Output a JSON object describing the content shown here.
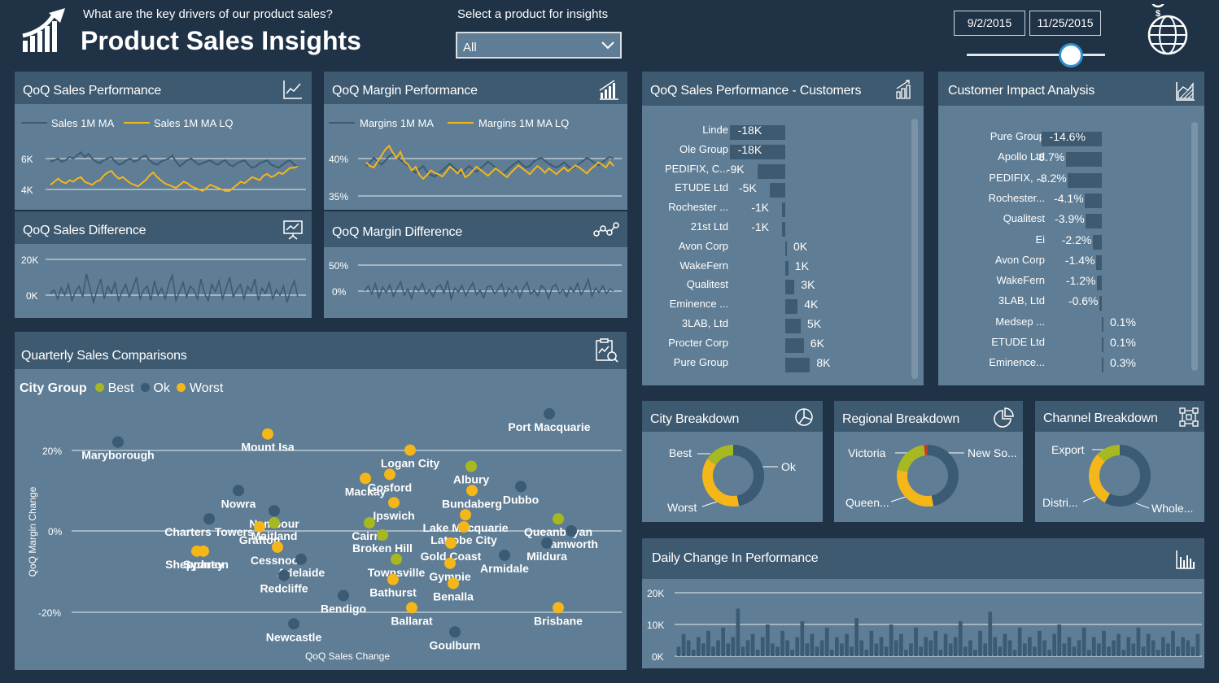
{
  "header": {
    "question": "What are the key drivers of our product sales?",
    "title": "Product Sales Insights",
    "selector_label": "Select a product for insights",
    "selector_value": "All",
    "date_start": "9/2/2015",
    "date_end": "11/25/2015",
    "date_slider_position": 0.75
  },
  "colors": {
    "bg": "#1f3246",
    "panel": "#5f7d94",
    "header": "#3e5a70",
    "navy": "#3b5a74",
    "yellow": "#f5b619",
    "green": "#a8b820"
  },
  "panels": {
    "qoq_sales": {
      "title": "QoQ Sales Performance",
      "legend": [
        "Sales 1M MA",
        "Sales 1M MA LQ"
      ],
      "ticks": [
        "6K",
        "4K"
      ]
    },
    "qoq_margin": {
      "title": "QoQ Margin Performance",
      "legend": [
        "Margins 1M MA",
        "Margins 1M MA LQ"
      ],
      "ticks": [
        "40%",
        "35%"
      ]
    },
    "sales_diff": {
      "title": "QoQ Sales Difference",
      "ticks": [
        "20K",
        "0K"
      ]
    },
    "margin_diff": {
      "title": "QoQ Margin Difference",
      "ticks": [
        "50%",
        "0%"
      ]
    },
    "customers": {
      "title": "QoQ Sales Performance - Customers"
    },
    "impact": {
      "title": "Customer Impact Analysis"
    },
    "quarterly": {
      "title": "Quarterly Sales Comparisons",
      "legend_title": "City Group",
      "legend": [
        "Best",
        "Ok",
        "Worst"
      ],
      "xlabel": "QoQ Sales Change",
      "ylabel": "QoQ Margin Change",
      "ticks": [
        "20%",
        "0%",
        "-20%"
      ]
    },
    "city": {
      "title": "City Breakdown",
      "labels": [
        "Best",
        "Ok",
        "Worst"
      ]
    },
    "regional": {
      "title": "Regional Breakdown",
      "labels": [
        "Victoria",
        "New So...",
        "Queen..."
      ]
    },
    "channel": {
      "title": "Channel Breakdown",
      "labels": [
        "Export",
        "Distri...",
        "Whole..."
      ]
    },
    "daily": {
      "title": "Daily Change In Performance",
      "ticks": [
        "20K",
        "10K",
        "0K"
      ]
    }
  },
  "customers": [
    {
      "name": "Linde",
      "label": "-18K",
      "value": -18
    },
    {
      "name": "Ole Group",
      "label": "-18K",
      "value": -18
    },
    {
      "name": "PEDIFIX, C...",
      "label": "-9K",
      "value": -9
    },
    {
      "name": "ETUDE Ltd",
      "label": "-5K",
      "value": -5
    },
    {
      "name": "Rochester ...",
      "label": "-1K",
      "value": -1
    },
    {
      "name": "21st Ltd",
      "label": "-1K",
      "value": -1
    },
    {
      "name": "Avon Corp",
      "label": "0K",
      "value": 0
    },
    {
      "name": "WakeFern",
      "label": "1K",
      "value": 1
    },
    {
      "name": "Qualitest",
      "label": "3K",
      "value": 3
    },
    {
      "name": "Eminence ...",
      "label": "4K",
      "value": 4
    },
    {
      "name": "3LAB, Ltd",
      "label": "5K",
      "value": 5
    },
    {
      "name": "Procter Corp",
      "label": "6K",
      "value": 6
    },
    {
      "name": "Pure Group",
      "label": "8K",
      "value": 8
    }
  ],
  "impact": [
    {
      "name": "Pure Group",
      "label": "-14.6%",
      "value": -14.6
    },
    {
      "name": "Apollo Ltd",
      "label": "-8.7%",
      "value": -8.7
    },
    {
      "name": "PEDIFIX, ...",
      "label": "-8.2%",
      "value": -8.2
    },
    {
      "name": "Rochester...",
      "label": "-4.1%",
      "value": -4.1
    },
    {
      "name": "Qualitest",
      "label": "-3.9%",
      "value": -3.9
    },
    {
      "name": "Ei",
      "label": "-2.2%",
      "value": -2.2
    },
    {
      "name": "Avon Corp",
      "label": "-1.4%",
      "value": -1.4
    },
    {
      "name": "WakeFern",
      "label": "-1.2%",
      "value": -1.2
    },
    {
      "name": "3LAB, Ltd",
      "label": "-0.6%",
      "value": -0.6
    },
    {
      "name": "Medsep ...",
      "label": "0.1%",
      "value": 0.1
    },
    {
      "name": "ETUDE Ltd",
      "label": "0.1%",
      "value": 0.1
    },
    {
      "name": "Eminence...",
      "label": "0.3%",
      "value": 0.3
    }
  ],
  "chart_data": [
    {
      "type": "line",
      "title": "QoQ Sales Performance",
      "series": [
        {
          "name": "Sales 1M MA",
          "values": [
            5.8,
            5.9,
            6.0,
            5.8,
            5.9,
            6.1,
            6.0,
            6.2,
            6.4,
            6.1,
            6.3,
            6.0,
            5.8,
            5.7,
            5.9,
            6.0,
            6.1,
            5.8,
            5.6,
            5.7,
            5.9,
            6.0,
            5.8,
            5.9,
            6.1,
            6.2,
            5.9,
            5.7,
            5.6,
            5.8,
            5.9,
            6.0,
            6.2,
            5.8,
            5.5,
            5.7,
            5.9,
            6.0,
            5.8,
            5.6,
            5.7,
            5.8,
            5.9,
            5.7,
            5.6,
            5.8,
            5.9,
            5.6,
            5.5,
            5.7,
            5.8,
            5.9,
            5.6,
            5.4,
            5.5,
            5.7,
            5.8,
            5.9,
            5.6,
            5.5,
            5.4,
            5.6,
            5.8,
            5.9,
            5.6,
            5.5
          ]
        },
        {
          "name": "Sales 1M MA LQ",
          "values": [
            4.3,
            4.5,
            4.7,
            4.5,
            4.4,
            4.6,
            4.5,
            4.7,
            4.8,
            4.5,
            4.4,
            4.3,
            4.5,
            4.6,
            4.9,
            5.1,
            5.2,
            4.9,
            4.7,
            4.8,
            4.6,
            4.4,
            4.3,
            4.2,
            4.4,
            4.6,
            4.9,
            5.1,
            4.8,
            4.6,
            4.4,
            4.3,
            4.2,
            4.1,
            4.3,
            4.5,
            4.4,
            4.2,
            4.1,
            4.0,
            3.9,
            4.1,
            4.3,
            4.2,
            4.1,
            4.0,
            3.9,
            3.9,
            4.1,
            4.3,
            4.5,
            4.4,
            4.6,
            4.8,
            4.7,
            4.6,
            4.9,
            5.0,
            4.8,
            4.9,
            5.1,
            5.0,
            5.2,
            5.4,
            5.4,
            5.5
          ]
        }
      ],
      "yticks": [
        "6K",
        "4K"
      ]
    },
    {
      "type": "line",
      "title": "QoQ Margin Performance",
      "series": [
        {
          "name": "Margins 1M MA",
          "values": [
            39.0,
            39.5,
            40.1,
            39.6,
            39.2,
            39.7,
            40.3,
            40.6,
            40.2,
            39.8,
            39.4,
            39.0,
            38.5,
            38.1,
            38.6,
            39.0,
            38.2,
            37.8,
            37.6,
            38.0,
            38.4,
            38.9,
            39.3,
            38.8,
            38.4,
            38.0,
            38.5,
            39.0,
            38.6,
            38.2,
            38.7,
            39.1,
            39.6,
            39.2,
            38.8,
            38.3,
            38.0,
            38.4,
            38.9,
            39.3,
            39.7,
            39.2,
            38.8,
            39.0,
            39.6,
            39.9,
            40.1,
            39.7,
            39.3,
            39.0,
            38.8,
            39.1,
            39.5,
            39.0,
            38.6,
            38.9,
            39.3,
            39.7,
            40.1,
            39.8,
            39.4,
            39.1,
            39.5,
            39.9,
            40.2,
            40.0
          ]
        },
        {
          "name": "Margins 1M MA LQ",
          "values": [
            39.5,
            39.0,
            38.8,
            39.6,
            40.4,
            41.2,
            41.7,
            40.8,
            40.1,
            40.9,
            39.6,
            39.2,
            38.4,
            38.9,
            37.8,
            37.3,
            37.8,
            38.4,
            38.1,
            37.9,
            37.6,
            38.2,
            38.9,
            38.5,
            38.0,
            38.6,
            37.5,
            37.8,
            38.4,
            38.9,
            38.5,
            38.1,
            37.7,
            38.2,
            38.7,
            38.3,
            37.9,
            37.5,
            38.1,
            38.6,
            39.1,
            38.7,
            38.3,
            37.9,
            38.5,
            39.0,
            38.6,
            38.1,
            38.7,
            38.3,
            37.9,
            38.4,
            38.8,
            38.3,
            38.7,
            39.1,
            38.8,
            38.4,
            38.0,
            38.6,
            39.0,
            39.5,
            39.2,
            38.8,
            39.6,
            39.0
          ]
        }
      ],
      "yticks": [
        "40%",
        "35%"
      ]
    },
    {
      "type": "line",
      "title": "QoQ Sales Difference",
      "series": [
        {
          "name": "",
          "values": [
            1,
            3,
            -2,
            4,
            0,
            6,
            -3,
            2,
            5,
            -1,
            12,
            4,
            -4,
            3,
            9,
            -2,
            5,
            1,
            7,
            -3,
            2,
            6,
            -1,
            4,
            10,
            -2,
            3,
            5,
            -3,
            8,
            0,
            4,
            -2,
            6,
            11,
            -3,
            2,
            7,
            -1,
            5,
            3,
            -2,
            9,
            1,
            -3,
            6,
            2,
            8,
            -2,
            4,
            10,
            -1,
            3,
            6,
            -2,
            5,
            2,
            9,
            -3,
            4,
            1,
            7,
            -2,
            3,
            0,
            5,
            -4,
            3,
            8,
            -1
          ]
        }
      ],
      "yticks": [
        "20K",
        "0K"
      ]
    },
    {
      "type": "line",
      "title": "QoQ Margin Difference",
      "series": [
        {
          "name": "",
          "values": [
            0,
            10,
            -5,
            14,
            -12,
            8,
            -3,
            12,
            -10,
            5,
            18,
            -8,
            4,
            -14,
            9,
            0,
            15,
            -6,
            3,
            -11,
            7,
            12,
            -4,
            20,
            -15,
            6,
            -2,
            11,
            -9,
            4,
            16,
            -7,
            2,
            -13,
            8,
            10,
            -5,
            3,
            14,
            -10,
            6,
            -3,
            9,
            -12,
            5,
            17,
            -6,
            2,
            -9,
            11,
            4,
            -14,
            7,
            13,
            -4,
            3,
            -11,
            8,
            -2,
            15,
            -7,
            5,
            22,
            -10,
            6,
            -3,
            10,
            -5,
            4,
            0
          ]
        }
      ],
      "yticks": [
        "50%",
        "0%"
      ]
    },
    {
      "type": "scatter",
      "title": "Quarterly Sales Comparisons",
      "xlabel": "QoQ Sales Change",
      "ylabel": "QoQ Margin Change",
      "yticks": [
        "20%",
        "0%",
        "-20%"
      ],
      "points": [
        {
          "label": "Maryborough",
          "x": 141,
          "y": 22,
          "group": "Ok"
        },
        {
          "label": "Mount Isa",
          "x": 325,
          "y": 24,
          "group": "Worst"
        },
        {
          "label": "Port Macquarie",
          "x": 671,
          "y": 29,
          "group": "Ok"
        },
        {
          "label": "Logan City",
          "x": 500,
          "y": 20,
          "group": "Worst"
        },
        {
          "label": "Nowra",
          "x": 289,
          "y": 10,
          "group": "Ok"
        },
        {
          "label": "Mackay",
          "x": 445,
          "y": 13,
          "group": "Worst"
        },
        {
          "label": "Gosford",
          "x": 475,
          "y": 14,
          "group": "Worst"
        },
        {
          "label": "Albury",
          "x": 575,
          "y": 16,
          "group": "Best"
        },
        {
          "label": "Nambour",
          "x": 333,
          "y": 5,
          "group": "Ok"
        },
        {
          "label": "Ipswich",
          "x": 480,
          "y": 7,
          "group": "Worst"
        },
        {
          "label": "Bundaberg",
          "x": 576,
          "y": 10,
          "group": "Worst"
        },
        {
          "label": "Dubbo",
          "x": 636,
          "y": 11,
          "group": "Ok"
        },
        {
          "label": "Lake Macquarie",
          "x": 568,
          "y": 4,
          "group": "Worst"
        },
        {
          "label": "Queanbeyan",
          "x": 682,
          "y": 3,
          "group": "Best"
        },
        {
          "label": "Charters Towers",
          "x": 253,
          "y": 3,
          "group": "Ok"
        },
        {
          "label": "Grafton",
          "x": 315,
          "y": 1,
          "group": "Worst"
        },
        {
          "label": "Maitland",
          "x": 333,
          "y": 2,
          "group": "Best"
        },
        {
          "label": "Cairns",
          "x": 450,
          "y": 2,
          "group": "Best"
        },
        {
          "label": "Latrobe City",
          "x": 566,
          "y": 1,
          "group": "Worst"
        },
        {
          "label": "Tamworth",
          "x": 698,
          "y": 0,
          "group": "Ok"
        },
        {
          "label": "Broken Hill",
          "x": 466,
          "y": -1,
          "group": "Best"
        },
        {
          "label": "Gold Coast",
          "x": 550,
          "y": -3,
          "group": "Worst"
        },
        {
          "label": "Mildura",
          "x": 668,
          "y": -3,
          "group": "Ok"
        },
        {
          "label": "Sydney",
          "x": 246,
          "y": -5,
          "group": "Worst"
        },
        {
          "label": "Cessnock",
          "x": 337,
          "y": -4,
          "group": "Worst"
        },
        {
          "label": "Shepparton",
          "x": 238,
          "y": -5,
          "group": "Worst"
        },
        {
          "label": "Armidale",
          "x": 616,
          "y": -6,
          "group": "Ok"
        },
        {
          "label": "Adelaide",
          "x": 366,
          "y": -7,
          "group": "Ok"
        },
        {
          "label": "Townsville",
          "x": 483,
          "y": -7,
          "group": "Best"
        },
        {
          "label": "Gympie",
          "x": 549,
          "y": -8,
          "group": "Worst"
        },
        {
          "label": "Redcliffe",
          "x": 345,
          "y": -11,
          "group": "Ok"
        },
        {
          "label": "Bathurst",
          "x": 479,
          "y": -12,
          "group": "Worst"
        },
        {
          "label": "Benalla",
          "x": 553,
          "y": -13,
          "group": "Worst"
        },
        {
          "label": "Bendigo",
          "x": 418,
          "y": -16,
          "group": "Ok"
        },
        {
          "label": "Ballarat",
          "x": 502,
          "y": -19,
          "group": "Worst"
        },
        {
          "label": "Brisbane",
          "x": 682,
          "y": -19,
          "group": "Worst"
        },
        {
          "label": "Newcastle",
          "x": 357,
          "y": -23,
          "group": "Ok"
        },
        {
          "label": "Goulburn",
          "x": 555,
          "y": -25,
          "group": "Ok"
        }
      ]
    },
    {
      "type": "pie",
      "title": "City Breakdown",
      "slices": [
        {
          "label": "Ok",
          "value": 47,
          "color": "#3b5a74"
        },
        {
          "label": "Worst",
          "value": 37,
          "color": "#f5b619"
        },
        {
          "label": "Best",
          "value": 16,
          "color": "#a8b820"
        }
      ]
    },
    {
      "type": "pie",
      "title": "Regional Breakdown",
      "slices": [
        {
          "label": "New So...",
          "value": 47,
          "color": "#3b5a74"
        },
        {
          "label": "Queen...",
          "value": 31,
          "color": "#f5b619"
        },
        {
          "label": "Victoria",
          "value": 20,
          "color": "#a8b820"
        },
        {
          "label": "",
          "value": 2,
          "color": "#c83a2a"
        }
      ]
    },
    {
      "type": "pie",
      "title": "Channel Breakdown",
      "slices": [
        {
          "label": "Whole...",
          "value": 58,
          "color": "#3b5a74"
        },
        {
          "label": "Distri...",
          "value": 29,
          "color": "#f5b619"
        },
        {
          "label": "Export",
          "value": 13,
          "color": "#a8b820"
        }
      ]
    },
    {
      "type": "bar",
      "title": "Daily Change In Performance",
      "yticks": [
        "20K",
        "10K",
        "0K"
      ],
      "values": [
        3,
        7,
        5,
        2,
        6,
        4,
        8,
        3,
        5,
        9,
        4,
        6,
        15,
        3,
        5,
        7,
        2,
        6,
        10,
        4,
        3,
        8,
        5,
        2,
        6,
        11,
        4,
        7,
        3,
        5,
        9,
        2,
        6,
        4,
        7,
        3,
        12,
        5,
        2,
        8,
        4,
        6,
        3,
        10,
        5,
        7,
        2,
        4,
        9,
        3,
        6,
        5,
        8,
        2,
        7,
        4,
        6,
        11,
        3,
        5,
        2,
        8,
        4,
        14,
        6,
        3,
        7,
        5,
        2,
        9,
        4,
        6,
        3,
        8,
        5,
        2,
        7,
        10,
        4,
        6,
        3,
        5,
        9,
        2,
        6,
        4,
        8,
        3,
        5,
        7,
        2,
        6,
        4,
        9,
        3,
        7,
        5,
        2,
        6,
        4,
        8,
        3,
        6,
        5,
        3,
        7
      ]
    }
  ]
}
